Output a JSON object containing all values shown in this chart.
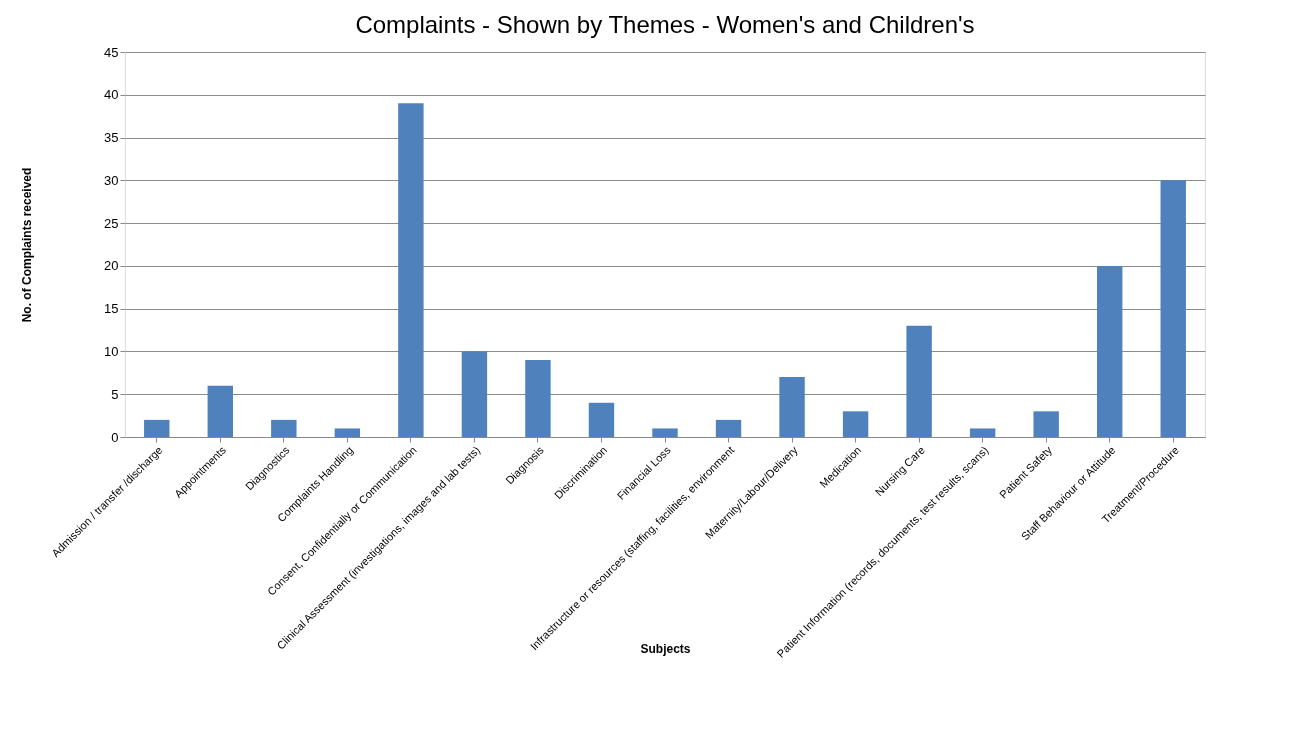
{
  "chart_data": {
    "type": "bar",
    "title": "Complaints - Shown by Themes - Women's and Children's",
    "xlabel": "Subjects",
    "ylabel": "No. of Complaints received",
    "categories": [
      "Admission / transfer /discharge",
      "Appointments",
      "Diagnostics",
      "Complaints Handling",
      "Consent, Confidentially or Communication",
      "Clinical Assessment (investigations, images and lab tests)",
      "Diagnosis",
      "Discrimination",
      "Financial Loss",
      "Infrastructure or resources (staffing, facilities, environment",
      "Maternity/Labour/Delivery",
      "Medication",
      "Nursing Care",
      "Patient Information (records, documents, test results, scans)",
      "Patient Safety",
      "Staff Behaviour or Attitude",
      "Treatment/Procedure"
    ],
    "values": [
      2,
      6,
      2,
      1,
      39,
      10,
      9,
      4,
      1,
      2,
      7,
      3,
      13,
      1,
      3,
      20,
      30
    ],
    "color": "#4f81bd",
    "ylim": [
      0,
      45
    ],
    "yticks": [
      0,
      5,
      10,
      15,
      20,
      25,
      30,
      35,
      40,
      45
    ],
    "grid": "y"
  }
}
